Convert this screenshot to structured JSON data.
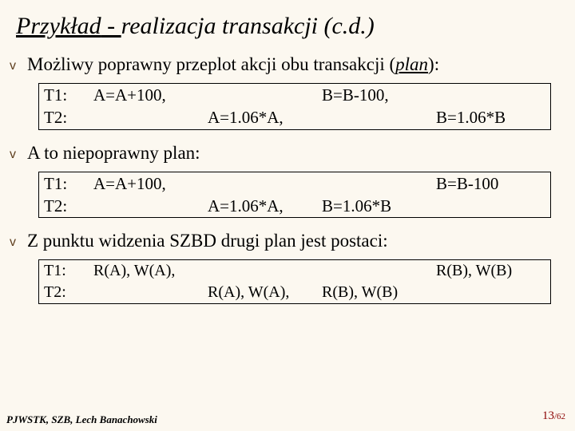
{
  "title": {
    "word1": "Przykład",
    "dash": " - ",
    "rest": "realizacja transakcji (c.d.)"
  },
  "bullets": {
    "b1": {
      "prefix": "Możliwy poprawny przeplot akcji obu transakcji (",
      "plan": "plan",
      "suffix": "):"
    },
    "b2": "A to niepoprawny plan:",
    "b3": "Z punktu widzenia SZBD drugi plan jest postaci:"
  },
  "box1": {
    "r1label": "T1:",
    "r1c1": "A=A+100,",
    "r1c2": "",
    "r1c3": "B=B-100,",
    "r1c4": "",
    "r2label": "T2:",
    "r2c1": "",
    "r2c2": "A=1.06*A,",
    "r2c3": "",
    "r2c4": "B=1.06*B"
  },
  "box2": {
    "r1label": "T1:",
    "r1c1": "A=A+100,",
    "r1c2": "",
    "r1c3": "",
    "r1c4": "B=B-100",
    "r2label": "T2:",
    "r2c1": "",
    "r2c2": "A=1.06*A,",
    "r2c3": "B=1.06*B",
    "r2c4": ""
  },
  "box3": {
    "r1label": "T1:",
    "r1c1": "R(A), W(A),",
    "r1c2": "",
    "r1c3": "",
    "r1c4": "R(B), W(B)",
    "r2label": "T2:",
    "r2c1": "",
    "r2c2": "R(A), W(A),",
    "r2c3": "R(B), W(B)",
    "r2c4": ""
  },
  "footer": "PJWSTK, SZB, Lech Banachowski",
  "page": {
    "num": "13",
    "total": "/62"
  }
}
